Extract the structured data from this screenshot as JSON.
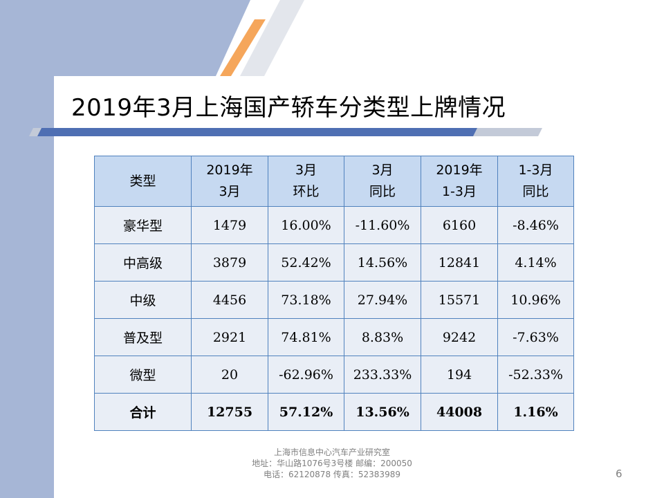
{
  "title": "2019年3月上海国产轿车分类型上牌情况",
  "colors": {
    "side_panel": "#a6b6d6",
    "accent_orange": "#f5a65b",
    "stripe_gray": "#e3e6ec",
    "header_fill": "#c6d9f1",
    "cell_fill": "#e9eef6",
    "grid_line": "#4f81bd",
    "title_bar": "#4f6fb3"
  },
  "table": {
    "headers": [
      {
        "line1": "类型",
        "line2": ""
      },
      {
        "line1": "2019年",
        "line2": "3月"
      },
      {
        "line1": "3月",
        "line2": "环比"
      },
      {
        "line1": "3月",
        "line2": "同比"
      },
      {
        "line1": "2019年",
        "line2": "1-3月"
      },
      {
        "line1": "1-3月",
        "line2": "同比"
      }
    ],
    "rows": [
      [
        "豪华型",
        "1479",
        "16.00%",
        "-11.60%",
        "6160",
        "-8.46%"
      ],
      [
        "中高级",
        "3879",
        "52.42%",
        "14.56%",
        "12841",
        "4.14%"
      ],
      [
        "中级",
        "4456",
        "73.18%",
        "27.94%",
        "15571",
        "10.96%"
      ],
      [
        "普及型",
        "2921",
        "74.81%",
        "8.83%",
        "9242",
        "-7.63%"
      ],
      [
        "微型",
        "20",
        "-62.96%",
        "233.33%",
        "194",
        "-52.33%"
      ],
      [
        "合计",
        "12755",
        "57.12%",
        "13.56%",
        "44008",
        "1.16%"
      ]
    ]
  },
  "footer": {
    "line1": "上海市信息中心汽车产业研究室",
    "line2": "地址：华山路1076号3号楼   邮编：200050",
    "line3": "电话：62120878  传真：52383989"
  },
  "page_number": "6"
}
